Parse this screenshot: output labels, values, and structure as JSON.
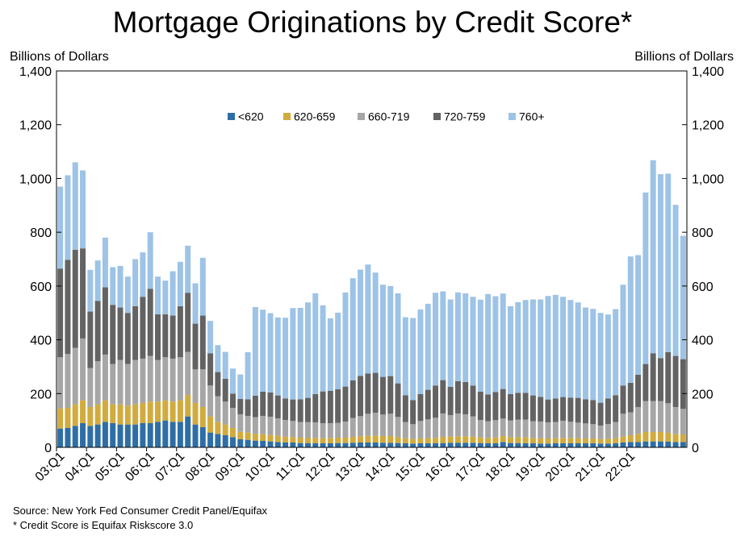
{
  "title": "Mortgage Originations by Credit Score*",
  "source": "Source: New York Fed Consumer Credit Panel/Equifax",
  "footnote": "* Credit Score is Equifax Riskscore 3.0",
  "chart_data": {
    "type": "bar",
    "stacked": true,
    "ylabel_left": "Billions of Dollars",
    "ylabel_right": "Billions of Dollars",
    "ylim": [
      0,
      1400
    ],
    "yticks": [
      0,
      200,
      400,
      600,
      800,
      1000,
      1200,
      1400
    ],
    "ytick_labels": [
      "0",
      "200",
      "400",
      "600",
      "800",
      "1,000",
      "1,200",
      "1,400"
    ],
    "xtick_labels": [
      "03:Q1",
      "04:Q1",
      "05:Q1",
      "06:Q1",
      "07:Q1",
      "08:Q1",
      "09:Q1",
      "10:Q1",
      "11:Q1",
      "12:Q1",
      "13:Q1",
      "14:Q1",
      "15:Q1",
      "16:Q1",
      "17:Q1",
      "18:Q1",
      "19:Q1",
      "20:Q1",
      "21:Q1",
      "22:Q1"
    ],
    "legend_position": "top-center",
    "grid": false,
    "colors": [
      "#2e6ea6",
      "#d1ab3e",
      "#a6a6a6",
      "#636363",
      "#9dc3e6"
    ],
    "series": [
      {
        "name": "<620",
        "values": [
          70,
          72,
          80,
          90,
          80,
          85,
          95,
          90,
          85,
          85,
          85,
          90,
          90,
          95,
          100,
          95,
          95,
          115,
          85,
          75,
          55,
          50,
          45,
          38,
          30,
          28,
          25,
          24,
          22,
          20,
          18,
          18,
          16,
          16,
          15,
          15,
          15,
          16,
          16,
          17,
          18,
          18,
          18,
          17,
          17,
          16,
          15,
          14,
          15,
          15,
          15,
          16,
          17,
          17,
          17,
          17,
          16,
          15,
          15,
          20,
          16,
          16,
          15,
          15,
          14,
          14,
          15,
          15,
          15,
          15,
          15,
          15,
          14,
          14,
          15,
          18,
          20,
          20,
          22,
          22,
          22,
          21,
          20,
          20
        ]
      },
      {
        "name": "620-659",
        "values": [
          75,
          75,
          80,
          85,
          70,
          75,
          80,
          70,
          75,
          70,
          75,
          75,
          80,
          75,
          75,
          75,
          80,
          80,
          80,
          75,
          60,
          45,
          40,
          34,
          28,
          27,
          25,
          25,
          24,
          23,
          22,
          20,
          20,
          20,
          20,
          19,
          20,
          20,
          20,
          22,
          23,
          25,
          26,
          25,
          25,
          22,
          19,
          17,
          18,
          19,
          20,
          23,
          23,
          24,
          24,
          23,
          21,
          20,
          22,
          22,
          22,
          22,
          23,
          20,
          20,
          19,
          19,
          20,
          20,
          19,
          18,
          18,
          17,
          18,
          19,
          22,
          25,
          30,
          35,
          35,
          35,
          33,
          30,
          28
        ]
      },
      {
        "name": "660-719",
        "values": [
          190,
          200,
          210,
          230,
          145,
          160,
          170,
          150,
          165,
          155,
          165,
          165,
          170,
          155,
          160,
          160,
          160,
          160,
          125,
          140,
          115,
          95,
          85,
          75,
          65,
          62,
          62,
          68,
          68,
          65,
          62,
          60,
          58,
          58,
          58,
          56,
          55,
          55,
          60,
          70,
          75,
          82,
          85,
          80,
          83,
          75,
          60,
          55,
          65,
          70,
          75,
          87,
          80,
          85,
          82,
          75,
          65,
          62,
          64,
          65,
          62,
          65,
          65,
          62,
          62,
          60,
          60,
          64,
          60,
          58,
          56,
          53,
          50,
          55,
          60,
          85,
          85,
          100,
          115,
          115,
          115,
          110,
          100,
          95
        ]
      },
      {
        "name": "720-759",
        "values": [
          330,
          350,
          365,
          335,
          210,
          225,
          250,
          220,
          195,
          190,
          200,
          230,
          250,
          170,
          160,
          160,
          190,
          220,
          170,
          200,
          120,
          90,
          85,
          53,
          57,
          62,
          80,
          90,
          90,
          85,
          80,
          80,
          85,
          90,
          105,
          118,
          120,
          125,
          130,
          140,
          150,
          150,
          148,
          140,
          140,
          125,
          100,
          90,
          100,
          110,
          120,
          124,
          105,
          120,
          120,
          115,
          105,
          100,
          105,
          110,
          98,
          100,
          100,
          96,
          92,
          85,
          88,
          88,
          90,
          92,
          90,
          90,
          85,
          95,
          100,
          105,
          110,
          120,
          138,
          178,
          160,
          190,
          190,
          185
        ]
      },
      {
        "name": "760+",
        "values": [
          305,
          315,
          325,
          290,
          155,
          150,
          185,
          140,
          155,
          135,
          175,
          165,
          210,
          140,
          125,
          165,
          165,
          175,
          150,
          215,
          120,
          100,
          100,
          93,
          91,
          175,
          330,
          305,
          295,
          290,
          300,
          340,
          340,
          355,
          375,
          320,
          270,
          285,
          350,
          380,
          395,
          405,
          373,
          343,
          335,
          335,
          290,
          305,
          315,
          320,
          345,
          330,
          325,
          330,
          330,
          330,
          342,
          373,
          356,
          355,
          327,
          337,
          345,
          357,
          362,
          385,
          385,
          373,
          363,
          355,
          341,
          339,
          334,
          312,
          320,
          375,
          470,
          445,
          638,
          718,
          684,
          664,
          562,
          459
        ]
      }
    ]
  }
}
